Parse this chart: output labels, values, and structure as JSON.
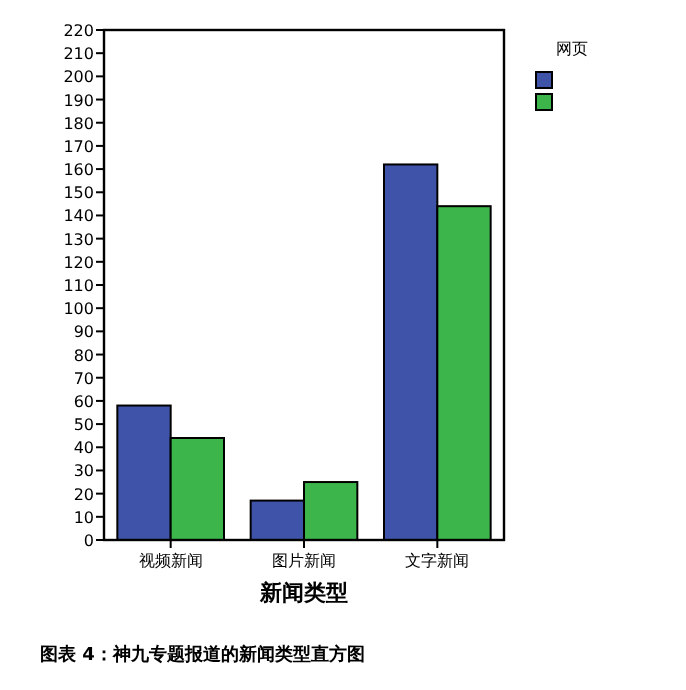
{
  "chart_data": {
    "type": "bar",
    "categories": [
      "视频新闻",
      "图片新闻",
      "文字新闻"
    ],
    "series": [
      {
        "color": "#3f54a8",
        "values": [
          58,
          17,
          162
        ]
      },
      {
        "color": "#3cb54a",
        "values": [
          44,
          25,
          144
        ]
      }
    ],
    "xlabel": "新闻类型",
    "legend_title": "网页",
    "ylim": [
      0,
      220
    ],
    "yticks": [
      0,
      10,
      20,
      30,
      40,
      50,
      60,
      70,
      80,
      90,
      100,
      110,
      120,
      130,
      140,
      150,
      160,
      170,
      180,
      190,
      200,
      210,
      220
    ],
    "grid": false,
    "annotations": [
      "图表 4：神九专题报道的新闻类型直方图"
    ]
  }
}
